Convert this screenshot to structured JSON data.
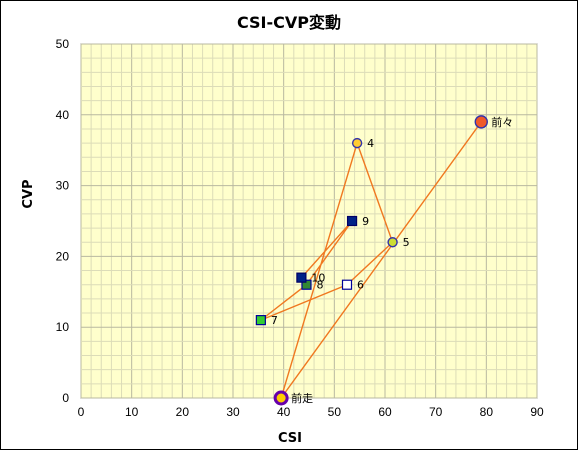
{
  "chart_data": {
    "type": "scatter",
    "title": "CSI-CVP変動",
    "xlabel": "CSI",
    "ylabel": "CVP",
    "xlim": [
      0,
      90
    ],
    "ylim": [
      0,
      50
    ],
    "xticks": [
      0,
      10,
      20,
      30,
      40,
      50,
      60,
      70,
      80,
      90
    ],
    "yticks": [
      0,
      10,
      20,
      30,
      40,
      50
    ],
    "grid": true,
    "plot_background": "#ffffcc",
    "line_color": "#f07820",
    "points": [
      {
        "label": "前々",
        "x": 79,
        "y": 39,
        "marker": "circle",
        "fill": "#f05a28",
        "stroke": "#3333aa"
      },
      {
        "label": "前走",
        "x": 39.5,
        "y": 0,
        "marker": "ring",
        "fill": "#ffcc00",
        "stroke": "#6600aa"
      },
      {
        "label": "4",
        "x": 54.5,
        "y": 36,
        "marker": "circle",
        "fill": "#ffcc33",
        "stroke": "#3333aa"
      },
      {
        "label": "5",
        "x": 61.5,
        "y": 22,
        "marker": "circle",
        "fill": "#ccdd33",
        "stroke": "#3333aa"
      },
      {
        "label": "6",
        "x": 52.5,
        "y": 16,
        "marker": "square",
        "fill": "#ffffff",
        "stroke": "#000099"
      },
      {
        "label": "7",
        "x": 35.5,
        "y": 11,
        "marker": "square",
        "fill": "#33cc33",
        "stroke": "#000099"
      },
      {
        "label": "8",
        "x": 44.5,
        "y": 16,
        "marker": "square",
        "fill": "#338833",
        "stroke": "#000099"
      },
      {
        "label": "9",
        "x": 53.5,
        "y": 25,
        "marker": "square",
        "fill": "#002288",
        "stroke": "#000066"
      },
      {
        "label": "10",
        "x": 43.5,
        "y": 17,
        "marker": "square",
        "fill": "#002288",
        "stroke": "#000066"
      }
    ],
    "path_order": [
      "前々",
      "前走",
      "4",
      "5",
      "6",
      "7",
      "8",
      "9",
      "10"
    ]
  }
}
